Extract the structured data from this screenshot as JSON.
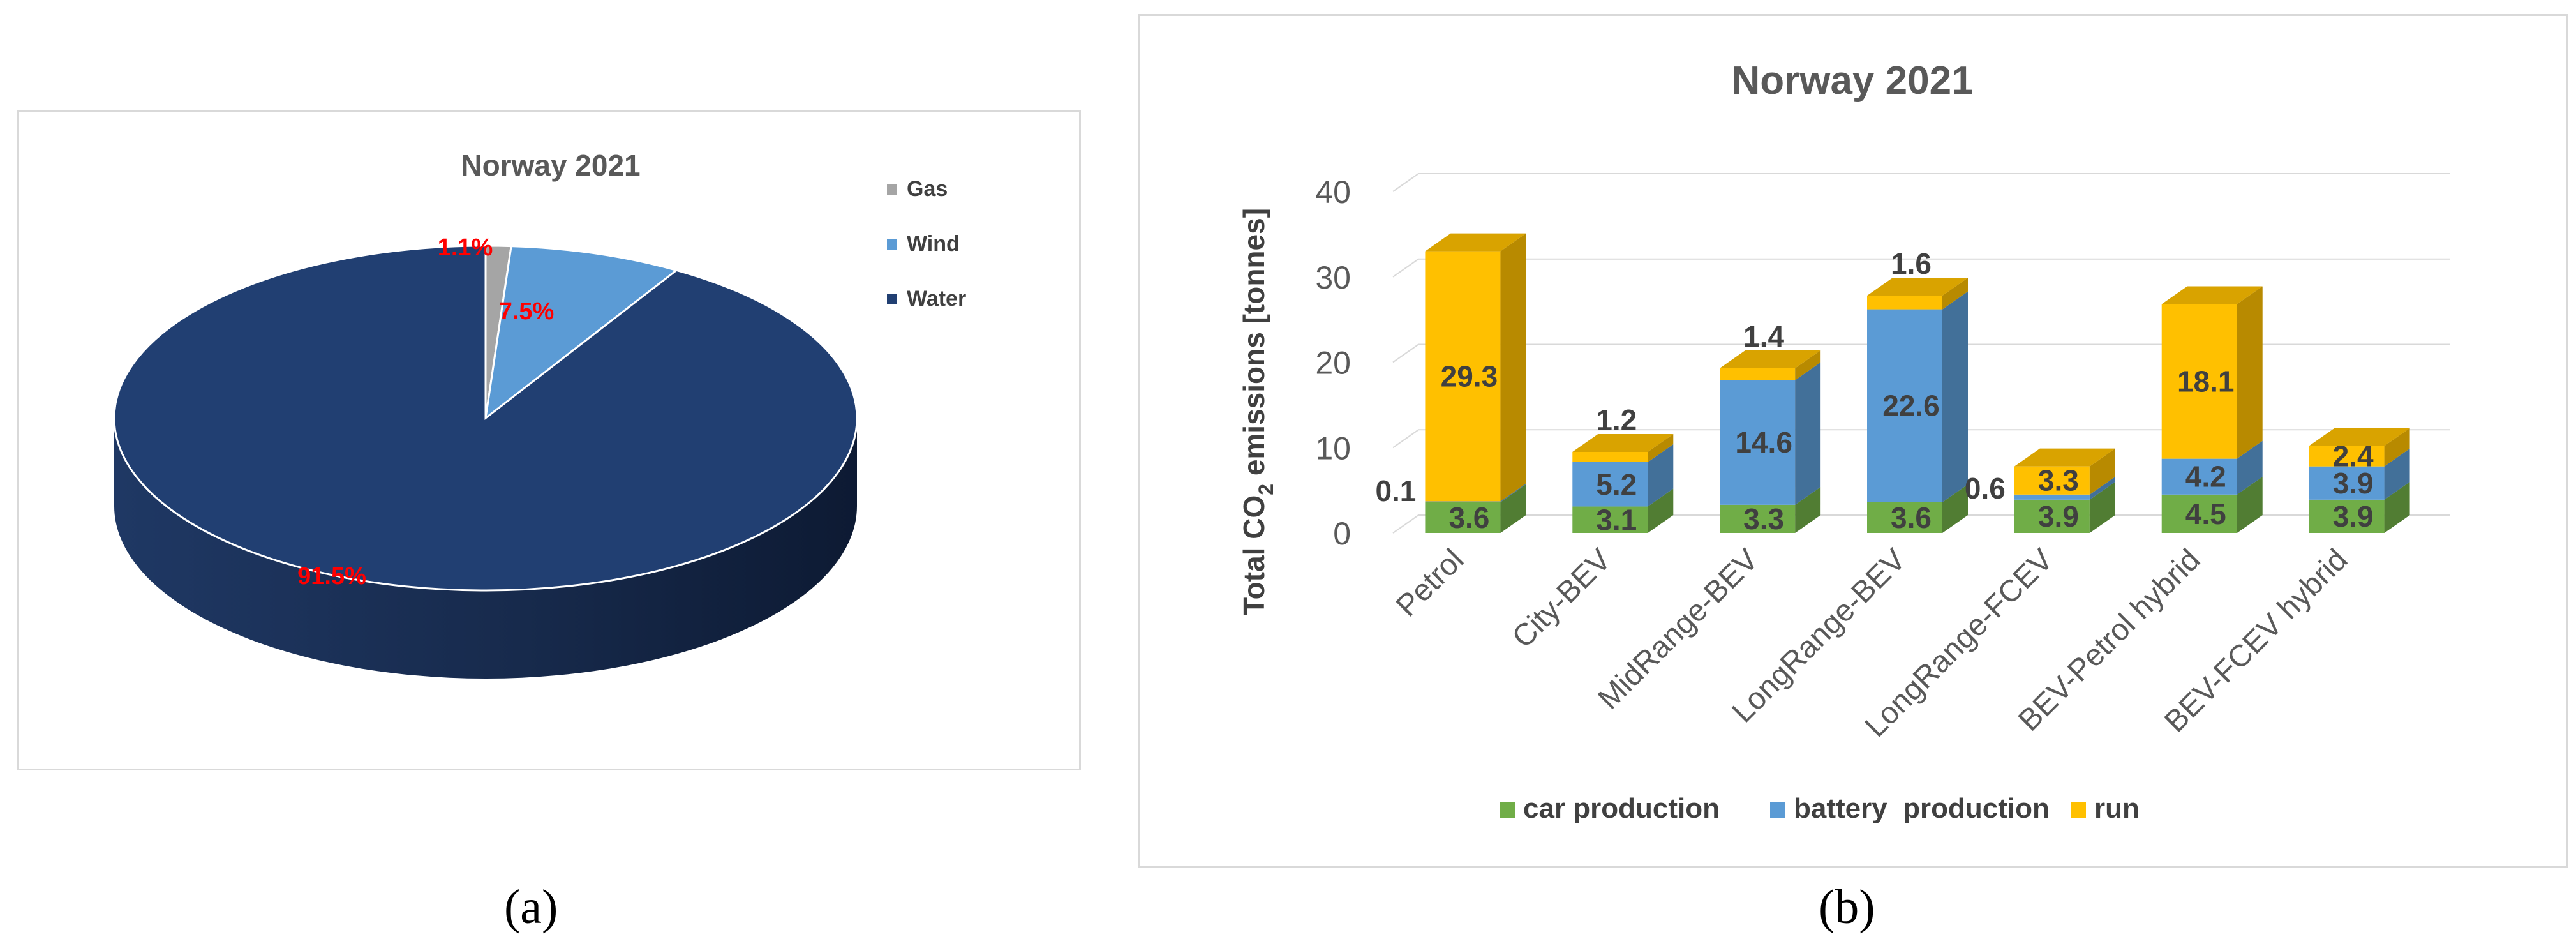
{
  "chart_data": [
    {
      "type": "pie",
      "title": "Norway 2021",
      "slices": [
        {
          "label": "Gas",
          "value": 1.1,
          "data_label": "1.1%",
          "color": "#a5a5a5"
        },
        {
          "label": "Wind",
          "value": 7.5,
          "data_label": "7.5%",
          "color": "#5b9bd5"
        },
        {
          "label": "Water",
          "value": 91.5,
          "data_label": "91.5%",
          "color": "#213f72"
        }
      ],
      "legend_position": "right",
      "label_color": "#ff0000"
    },
    {
      "type": "bar",
      "stacked": true,
      "title": "Norway 2021",
      "ylabel_main": "Total CO",
      "ylabel_sub": "2",
      "ylabel_rest": " emissions [tonnes]",
      "ylim": [
        0,
        40
      ],
      "yticks": [
        "0",
        "10",
        "20",
        "30",
        "40"
      ],
      "categories": [
        "Petrol",
        "City-BEV",
        "MidRange-BEV",
        "LongRange-BEV",
        "LongRange-FCEV",
        "BEV-Petrol hybrid",
        "BEV-FCEV hybrid"
      ],
      "series": [
        {
          "name": "car production",
          "color": "#70ad47",
          "values": [
            3.6,
            3.1,
            3.3,
            3.6,
            3.9,
            4.5,
            3.9
          ],
          "labels": [
            "3.6",
            "3.1",
            "3.3",
            "3.6",
            "3.9",
            "4.5",
            "3.9"
          ]
        },
        {
          "name": "battery  production",
          "color": "#5b9bd5",
          "values": [
            0.1,
            5.2,
            14.6,
            22.6,
            0.6,
            4.2,
            3.9
          ],
          "labels": [
            "0.1",
            "5.2",
            "14.6",
            "22.6",
            "0.6",
            "4.2",
            "3.9"
          ]
        },
        {
          "name": "run",
          "color": "#ffc000",
          "values": [
            29.3,
            1.2,
            1.4,
            1.6,
            3.3,
            18.1,
            2.4
          ],
          "labels": [
            "29.3",
            "1.2",
            "1.4",
            "1.6",
            "3.3",
            "18.1",
            "2.4"
          ]
        }
      ],
      "legend_position": "bottom"
    }
  ],
  "captions": {
    "a": "(a)",
    "b": "(b)"
  }
}
